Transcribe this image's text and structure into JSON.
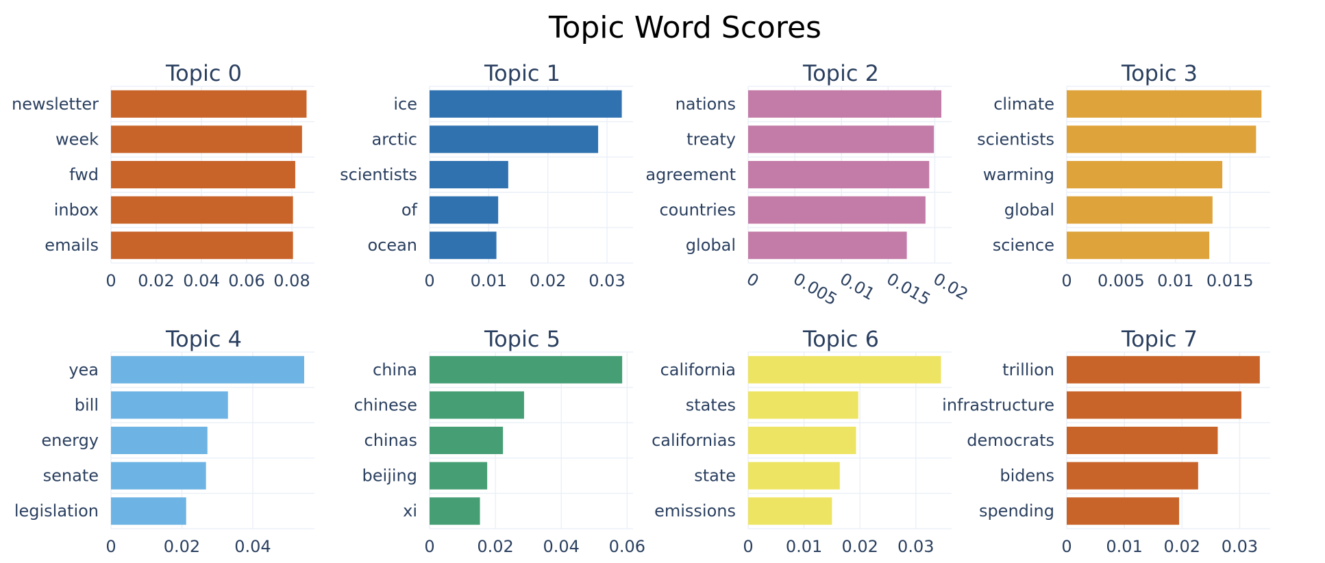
{
  "chart_data": {
    "type": "bar",
    "orientation": "horizontal",
    "title": "Topic Word Scores",
    "grid": true,
    "layout": "2 rows x 4 columns",
    "panels": [
      {
        "title": "Topic 0",
        "color": "#c8642a",
        "categories": [
          "newsletter",
          "week",
          "fwd",
          "inbox",
          "emails"
        ],
        "values": [
          0.0865,
          0.0845,
          0.0815,
          0.0805,
          0.0805
        ],
        "xlim": [
          0,
          0.09
        ],
        "xticks": [
          0,
          0.02,
          0.04,
          0.06,
          0.08
        ],
        "xtick_labels": [
          "0",
          "0.02",
          "0.04",
          "0.06",
          "0.08"
        ],
        "tick_angle": 0
      },
      {
        "title": "Topic 1",
        "color": "#3072b0",
        "categories": [
          "ice",
          "arctic",
          "scientists",
          "of",
          "ocean"
        ],
        "values": [
          0.0325,
          0.0285,
          0.0133,
          0.0116,
          0.0113
        ],
        "xlim": [
          0,
          0.0344
        ],
        "xticks": [
          0,
          0.01,
          0.02,
          0.03
        ],
        "xtick_labels": [
          "0",
          "0.01",
          "0.02",
          "0.03"
        ],
        "tick_angle": 0
      },
      {
        "title": "Topic 2",
        "color": "#c37ba7",
        "categories": [
          "nations",
          "treaty",
          "agreement",
          "countries",
          "global"
        ],
        "values": [
          0.0207,
          0.0199,
          0.0194,
          0.019,
          0.017
        ],
        "xlim": [
          0,
          0.0218
        ],
        "xticks": [
          0,
          0.005,
          0.01,
          0.015,
          0.02
        ],
        "xtick_labels": [
          "0",
          "0.005",
          "0.01",
          "0.015",
          "0.02"
        ],
        "tick_angle": 30
      },
      {
        "title": "Topic 3",
        "color": "#dea33a",
        "categories": [
          "climate",
          "scientists",
          "warming",
          "global",
          "science"
        ],
        "values": [
          0.0179,
          0.0174,
          0.0143,
          0.0134,
          0.0131
        ],
        "xlim": [
          0,
          0.0187
        ],
        "xticks": [
          0,
          0.005,
          0.01,
          0.015
        ],
        "xtick_labels": [
          "0",
          "0.005",
          "0.01",
          "0.015"
        ],
        "tick_angle": 0
      },
      {
        "title": "Topic 4",
        "color": "#6db3e3",
        "categories": [
          "yea",
          "bill",
          "energy",
          "senate",
          "legislation"
        ],
        "values": [
          0.0545,
          0.033,
          0.0272,
          0.0268,
          0.0212
        ],
        "xlim": [
          0,
          0.0574
        ],
        "xticks": [
          0,
          0.02,
          0.04
        ],
        "xtick_labels": [
          "0",
          "0.02",
          "0.04"
        ],
        "tick_angle": 0
      },
      {
        "title": "Topic 5",
        "color": "#469e75",
        "categories": [
          "china",
          "chinese",
          "chinas",
          "beijing",
          "xi"
        ],
        "values": [
          0.0585,
          0.0287,
          0.0223,
          0.0175,
          0.0153
        ],
        "xlim": [
          0,
          0.0618
        ],
        "xticks": [
          0,
          0.02,
          0.04,
          0.06
        ],
        "xtick_labels": [
          "0",
          "0.02",
          "0.04",
          "0.06"
        ],
        "tick_angle": 0
      },
      {
        "title": "Topic 6",
        "color": "#eee463",
        "categories": [
          "california",
          "states",
          "californias",
          "state",
          "emissions"
        ],
        "values": [
          0.0345,
          0.0197,
          0.0193,
          0.0164,
          0.015
        ],
        "xlim": [
          0,
          0.0364
        ],
        "xticks": [
          0,
          0.01,
          0.02,
          0.03
        ],
        "xtick_labels": [
          "0",
          "0.01",
          "0.02",
          "0.03"
        ],
        "tick_angle": 0
      },
      {
        "title": "Topic 7",
        "color": "#c8642a",
        "categories": [
          "trillion",
          "infrastructure",
          "democrats",
          "bidens",
          "spending"
        ],
        "values": [
          0.0335,
          0.0303,
          0.0262,
          0.0228,
          0.0195
        ],
        "xlim": [
          0,
          0.0353
        ],
        "xticks": [
          0,
          0.01,
          0.02,
          0.03
        ],
        "xtick_labels": [
          "0",
          "0.01",
          "0.02",
          "0.03"
        ],
        "tick_angle": 0
      }
    ]
  }
}
